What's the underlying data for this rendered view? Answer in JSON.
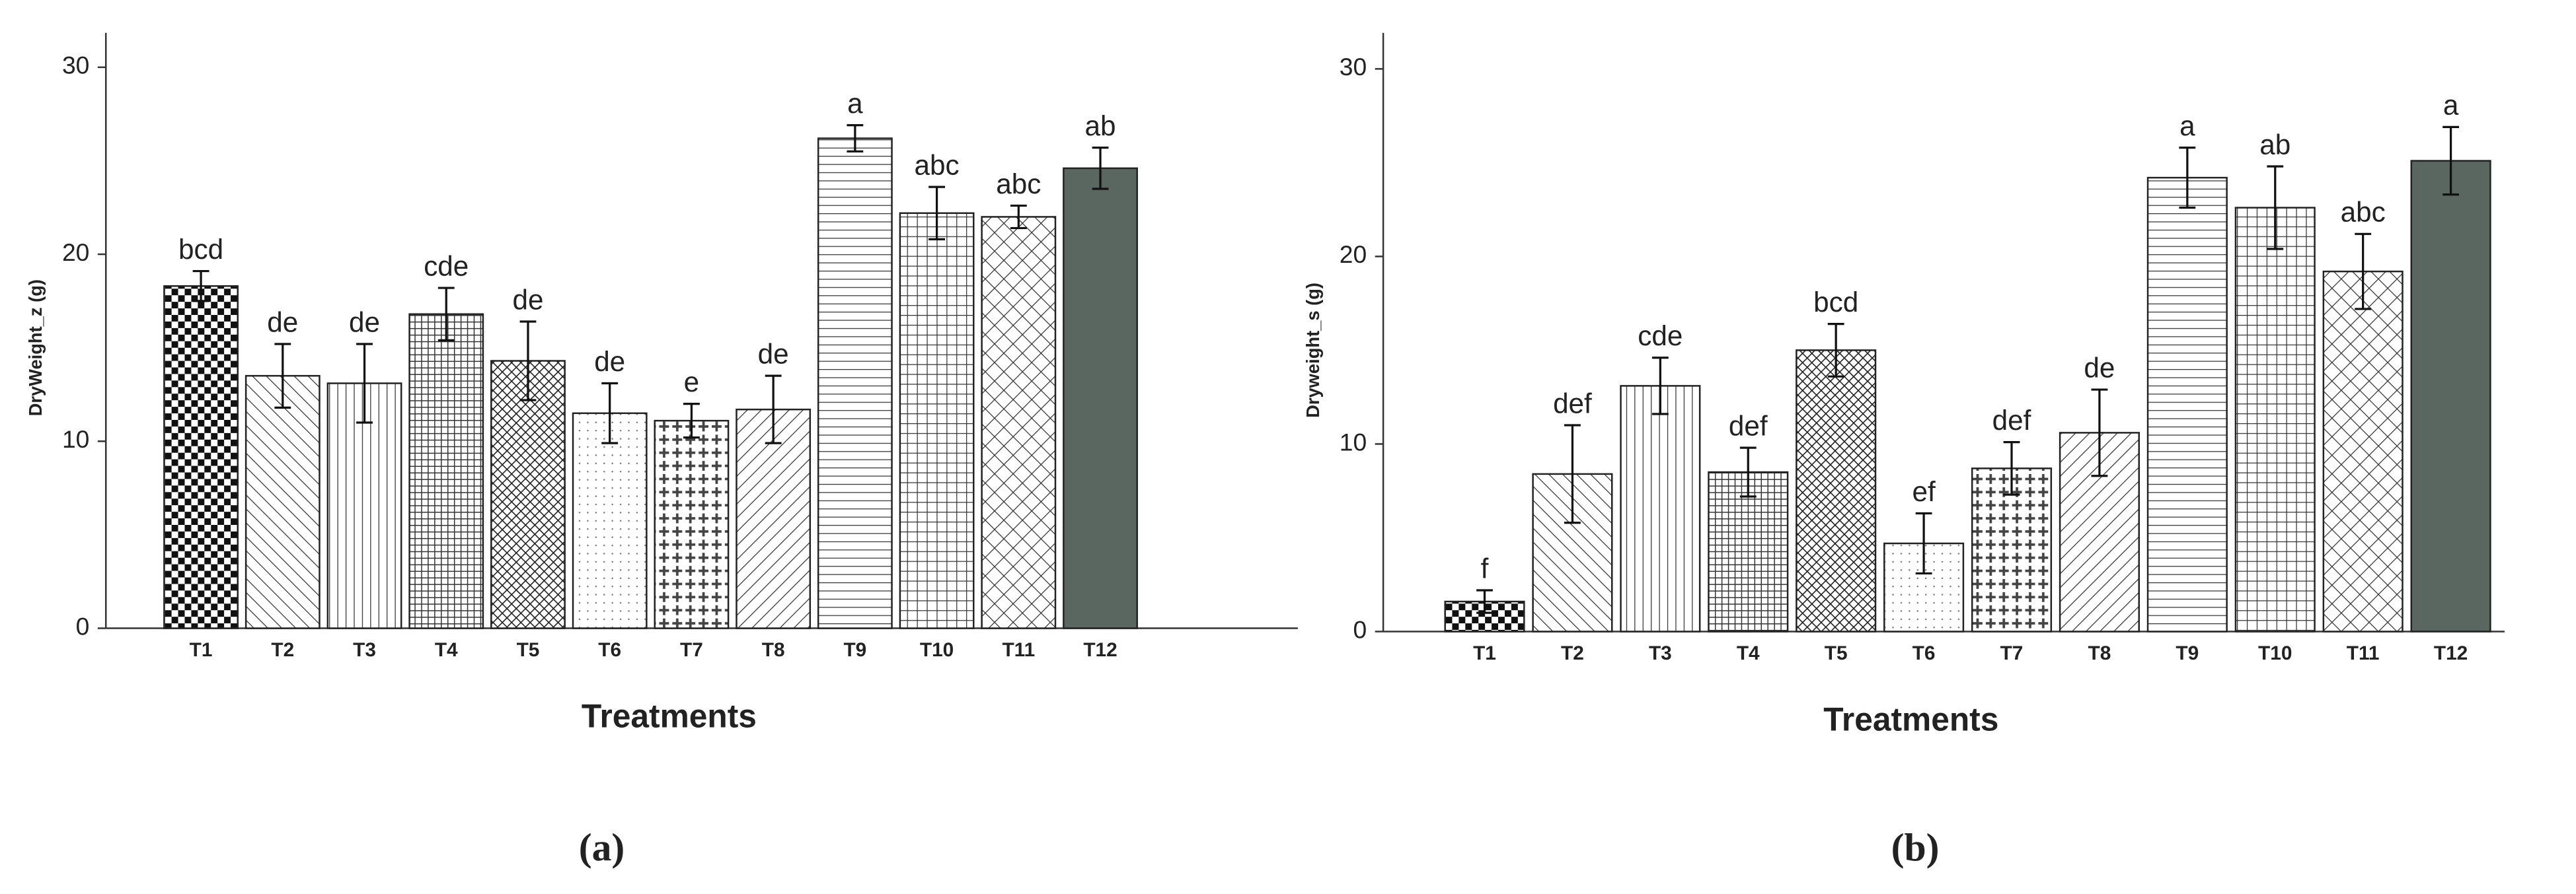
{
  "chart_data": [
    {
      "type": "bar",
      "caption": "(a)",
      "xlabel": "Treatments",
      "ylabel": "DryWeight_z (g)",
      "categories": [
        "T1",
        "T2",
        "T3",
        "T4",
        "T5",
        "T6",
        "T7",
        "T8",
        "T9",
        "T10",
        "T11",
        "T12"
      ],
      "values": [
        18.3,
        13.5,
        13.1,
        16.8,
        14.3,
        11.5,
        11.1,
        11.7,
        26.2,
        22.2,
        22.0,
        24.6
      ],
      "errors": [
        0.8,
        1.7,
        2.1,
        1.4,
        2.1,
        1.6,
        0.9,
        1.8,
        0.7,
        1.4,
        0.6,
        1.1
      ],
      "annotations": [
        "bcd",
        "de",
        "de",
        "cde",
        "de",
        "de",
        "e",
        "de",
        "a",
        "abc",
        "abc",
        "ab"
      ],
      "ylim": [
        0,
        30
      ],
      "yticks": [
        0,
        10,
        20,
        30
      ]
    },
    {
      "type": "bar",
      "caption": "(b)",
      "xlabel": "Treatments",
      "ylabel": "Dryweight_s (g)",
      "categories": [
        "T1",
        "T2",
        "T3",
        "T4",
        "T5",
        "T6",
        "T7",
        "T8",
        "T9",
        "T10",
        "T11",
        "T12"
      ],
      "values": [
        1.6,
        8.4,
        13.1,
        8.5,
        15.0,
        4.7,
        8.7,
        10.6,
        24.2,
        22.6,
        19.2,
        25.1
      ],
      "errors": [
        0.6,
        2.6,
        1.5,
        1.3,
        1.4,
        1.6,
        1.4,
        2.3,
        1.6,
        2.2,
        2.0,
        1.8
      ],
      "annotations": [
        "f",
        "def",
        "cde",
        "def",
        "bcd",
        "ef",
        "def",
        "de",
        "a",
        "ab",
        "abc",
        "a"
      ],
      "ylim": [
        0,
        30
      ],
      "yticks": [
        0,
        10,
        20,
        30
      ]
    }
  ]
}
